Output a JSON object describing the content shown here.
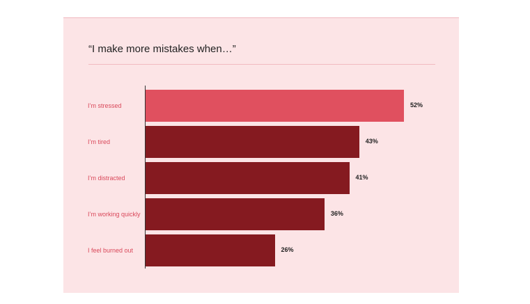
{
  "chart_data": {
    "type": "bar",
    "orientation": "horizontal",
    "title": "“I make more mistakes when…”",
    "categories": [
      "I’m stressed",
      "I’m tired",
      "I’m distracted",
      "I’m working quickly",
      "I feel burned out"
    ],
    "values": [
      52,
      43,
      41,
      36,
      26
    ],
    "value_labels": [
      "52%",
      "43%",
      "41%",
      "36%",
      "26%"
    ],
    "colors": [
      "#e0505f",
      "#851a20",
      "#851a20",
      "#851a20",
      "#851a20"
    ]
  }
}
